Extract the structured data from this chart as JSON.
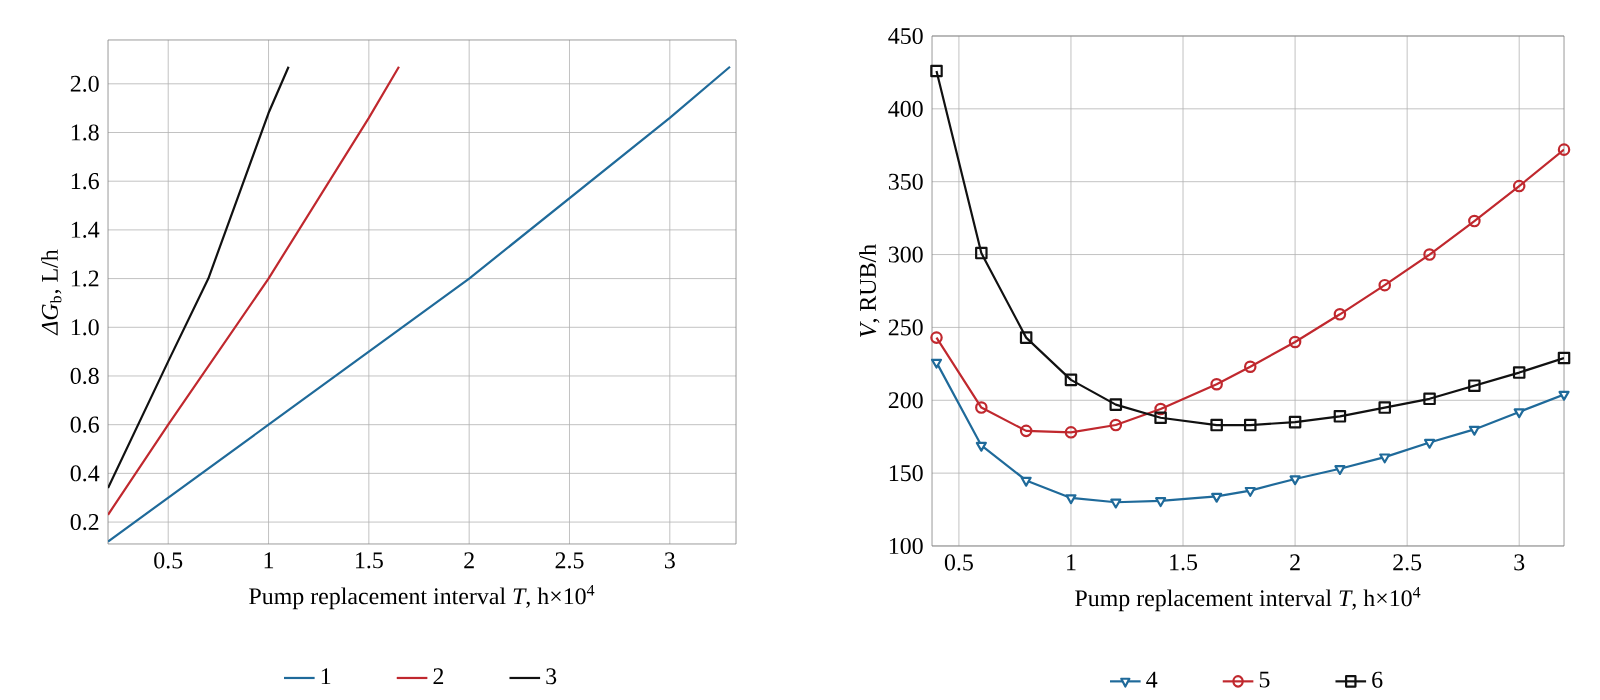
{
  "chart_data": [
    {
      "type": "line",
      "xlabel": "Pump replacement interval *T*, h×10$^{4}$",
      "ylabel": "*ΔG*$_{b}$, L/h",
      "xlim": [
        0.2,
        3.33
      ],
      "ylim": [
        0.11,
        2.18
      ],
      "xticks": [
        0.5,
        1,
        1.5,
        2,
        2.5,
        3
      ],
      "yticks": [
        {
          "value": 0.2,
          "label": "0.2"
        },
        {
          "value": 0.4,
          "label": "0.4"
        },
        {
          "value": 0.6,
          "label": "0.6"
        },
        {
          "value": 0.8,
          "label": "0.8"
        },
        {
          "value": 1.0,
          "label": "1.0"
        },
        {
          "value": 1.2,
          "label": "1.2"
        },
        {
          "value": 1.4,
          "label": "1.4"
        },
        {
          "value": 1.6,
          "label": "1.6"
        },
        {
          "value": 1.8,
          "label": "1.8"
        },
        {
          "value": 2.0,
          "label": "2.0"
        }
      ],
      "grid": true,
      "legend": "bottom",
      "series": [
        {
          "name": "1",
          "color": "#1f6a9a",
          "x": [
            0.2,
            1,
            2,
            3,
            3.3
          ],
          "values": [
            0.12,
            0.6,
            1.2,
            1.86,
            2.07
          ]
        },
        {
          "name": "2",
          "color": "#c0282e",
          "x": [
            0.2,
            0.5,
            1,
            1.5,
            1.65
          ],
          "values": [
            0.23,
            0.6,
            1.2,
            1.86,
            2.07
          ]
        },
        {
          "name": "3",
          "color": "#111111",
          "x": [
            0.2,
            0.5,
            0.7,
            1,
            1.1
          ],
          "values": [
            0.34,
            0.86,
            1.2,
            1.88,
            2.07
          ]
        }
      ]
    },
    {
      "type": "line",
      "xlabel": "Pump replacement interval *T*, h×10$^{4}$",
      "ylabel": "*V*, RUB/h",
      "xlim": [
        0.38,
        3.2
      ],
      "ylim": [
        100,
        450
      ],
      "xticks": [
        0.5,
        1,
        1.5,
        2,
        2.5,
        3
      ],
      "yticks": [
        100,
        150,
        200,
        250,
        300,
        350,
        400,
        450
      ],
      "grid": true,
      "legend": "bottom",
      "series": [
        {
          "name": "4",
          "color": "#1f6a9a",
          "marker": "triangle",
          "x": [
            0.4,
            0.6,
            0.8,
            1,
            1.2,
            1.4,
            1.65,
            1.8,
            2,
            2.2,
            2.4,
            2.6,
            2.8,
            3,
            3.2
          ],
          "values": [
            226,
            169,
            145,
            133,
            130,
            131,
            134,
            138,
            146,
            153,
            161,
            171,
            180,
            192,
            204
          ]
        },
        {
          "name": "5",
          "color": "#c0282e",
          "marker": "circle",
          "x": [
            0.4,
            0.6,
            0.8,
            1,
            1.2,
            1.4,
            1.65,
            1.8,
            2,
            2.2,
            2.4,
            2.6,
            2.8,
            3,
            3.2
          ],
          "values": [
            243,
            195,
            179,
            178,
            183,
            194,
            211,
            223,
            240,
            259,
            279,
            300,
            323,
            347,
            372
          ]
        },
        {
          "name": "6",
          "color": "#111111",
          "marker": "square",
          "x": [
            0.4,
            0.6,
            0.8,
            1,
            1.2,
            1.4,
            1.65,
            1.8,
            2,
            2.2,
            2.4,
            2.6,
            2.8,
            3,
            3.2
          ],
          "values": [
            426,
            301,
            243,
            214,
            197,
            188,
            183,
            183,
            185,
            189,
            195,
            201,
            210,
            219,
            229
          ]
        }
      ]
    }
  ]
}
